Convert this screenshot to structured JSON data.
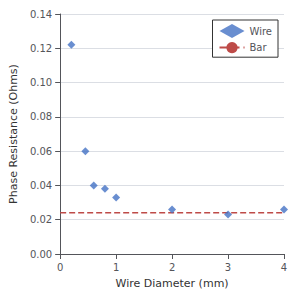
{
  "chart_data": {
    "type": "scatter",
    "xlabel": "Wire Diameter (mm)",
    "ylabel": "Phase Resistance (Ohms)",
    "series": [
      {
        "name": "Wire",
        "type": "scatter",
        "color": "#4472C4",
        "marker": "diamond",
        "x": [
          0.2,
          0.45,
          0.6,
          0.8,
          1.0,
          2.0,
          3.0,
          4.0
        ],
        "values": [
          0.122,
          0.06,
          0.04,
          0.038,
          0.033,
          0.026,
          0.023,
          0.026
        ]
      },
      {
        "name": "Bar",
        "type": "line",
        "color": "#BE4B48",
        "line_style": "dashed",
        "x": [
          0,
          4
        ],
        "values": [
          0.024,
          0.024
        ]
      }
    ],
    "xlim": [
      0,
      4
    ],
    "xticks": [
      0,
      1,
      2,
      3,
      4
    ],
    "ylim": [
      0,
      0.14
    ],
    "yticks": [
      {
        "value": 0,
        "label": "0.00"
      },
      {
        "value": 0.02,
        "label": "0.02"
      },
      {
        "value": 0.04,
        "label": "0.04"
      },
      {
        "value": 0.06,
        "label": "0.06"
      },
      {
        "value": 0.08,
        "label": "0.08"
      },
      {
        "value": 0.1,
        "label": "0.10"
      },
      {
        "value": 0.12,
        "label": "0.12"
      },
      {
        "value": 0.14,
        "label": "0.14"
      }
    ],
    "grid": "y",
    "legend": "upper right"
  }
}
